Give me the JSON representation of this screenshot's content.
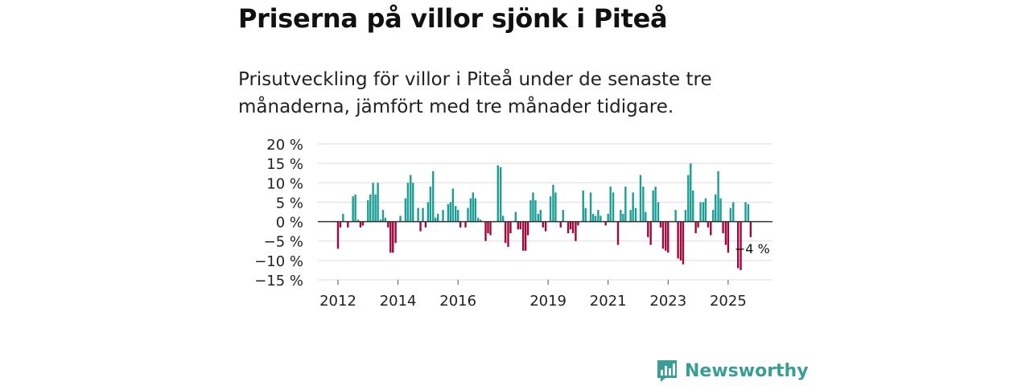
{
  "title": "Priserna på villor sjönk i Piteå",
  "subtitle": "Prisutveckling för villor i Piteå under de senaste tre månaderna, jämfört med tre månader tidigare.",
  "brand": {
    "name": "Newsworthy"
  },
  "colors": {
    "positive": "#1a9e96",
    "negative": "#a0083c",
    "grid": "#dddddd",
    "zero": "#333333",
    "brand": "#3a9d96"
  },
  "chart_data": {
    "type": "bar",
    "title": "Priserna på villor sjönk i Piteå",
    "xlabel": "",
    "ylabel": "",
    "ylim": [
      -15,
      20
    ],
    "y_ticks": [
      20,
      15,
      10,
      5,
      0,
      -5,
      -10,
      -15
    ],
    "y_tick_labels": [
      "20 %",
      "15 %",
      "10 %",
      "5 %",
      "0 %",
      "−5 %",
      "−10 %",
      "−15 %"
    ],
    "x_range": [
      2011.5,
      2026.5
    ],
    "x_ticks": [
      2012,
      2014,
      2016,
      2019,
      2021,
      2023,
      2025
    ],
    "x_tick_labels": [
      "2012",
      "2014",
      "2016",
      "2019",
      "2021",
      "2023",
      "2025"
    ],
    "annotation": {
      "text": "−4 %",
      "x": 2025.75,
      "y": -4
    },
    "x": [
      2012.0,
      2012.08,
      2012.17,
      2012.25,
      2012.33,
      2012.42,
      2012.5,
      2012.58,
      2012.67,
      2012.75,
      2012.83,
      2012.92,
      2013.0,
      2013.08,
      2013.17,
      2013.25,
      2013.33,
      2013.42,
      2013.5,
      2013.58,
      2013.67,
      2013.75,
      2013.83,
      2013.92,
      2014.0,
      2014.08,
      2014.17,
      2014.25,
      2014.33,
      2014.42,
      2014.5,
      2014.58,
      2014.67,
      2014.75,
      2014.83,
      2014.92,
      2015.0,
      2015.08,
      2015.17,
      2015.25,
      2015.33,
      2015.42,
      2015.5,
      2015.58,
      2015.67,
      2015.75,
      2015.83,
      2015.92,
      2016.0,
      2016.08,
      2016.17,
      2016.25,
      2016.33,
      2016.42,
      2016.5,
      2016.58,
      2016.67,
      2016.75,
      2016.83,
      2016.92,
      2017.0,
      2017.08,
      2017.17,
      2017.25,
      2017.33,
      2017.42,
      2017.5,
      2017.58,
      2017.67,
      2017.75,
      2017.83,
      2017.92,
      2018.0,
      2018.08,
      2018.17,
      2018.25,
      2018.33,
      2018.42,
      2018.5,
      2018.58,
      2018.67,
      2018.75,
      2018.83,
      2018.92,
      2019.0,
      2019.08,
      2019.17,
      2019.25,
      2019.33,
      2019.42,
      2019.5,
      2019.58,
      2019.67,
      2019.75,
      2019.83,
      2019.92,
      2020.0,
      2020.08,
      2020.17,
      2020.25,
      2020.33,
      2020.42,
      2020.5,
      2020.58,
      2020.67,
      2020.75,
      2020.83,
      2020.92,
      2021.0,
      2021.08,
      2021.17,
      2021.25,
      2021.33,
      2021.42,
      2021.5,
      2021.58,
      2021.67,
      2021.75,
      2021.83,
      2021.92,
      2022.0,
      2022.08,
      2022.17,
      2022.25,
      2022.33,
      2022.42,
      2022.5,
      2022.58,
      2022.67,
      2022.75,
      2022.83,
      2022.92,
      2023.0,
      2023.08,
      2023.17,
      2023.25,
      2023.33,
      2023.42,
      2023.5,
      2023.58,
      2023.67,
      2023.75,
      2023.83,
      2023.92,
      2024.0,
      2024.08,
      2024.17,
      2024.25,
      2024.33,
      2024.42,
      2024.5,
      2024.58,
      2024.67,
      2024.75,
      2024.83,
      2024.92,
      2025.0,
      2025.08,
      2025.17,
      2025.25,
      2025.33,
      2025.42,
      2025.5,
      2025.58,
      2025.67,
      2025.75
    ],
    "values": [
      -7,
      -1.5,
      2,
      0,
      -1.5,
      0,
      6.5,
      7,
      0.5,
      -1.5,
      -1,
      0,
      5.5,
      7,
      10,
      7,
      10,
      0.5,
      3,
      1,
      -1.5,
      -8,
      -8,
      -5.5,
      0,
      1.5,
      0,
      6,
      10,
      12,
      10,
      0,
      3.5,
      -2.5,
      3.5,
      -1.5,
      5,
      9,
      13,
      1,
      2,
      0,
      3,
      0,
      4.5,
      5,
      8.5,
      4,
      3,
      -1.5,
      0,
      -1.5,
      3.5,
      6,
      7.5,
      6,
      1,
      0.5,
      0,
      -5,
      -3,
      -3.5,
      0,
      0,
      14.5,
      14,
      1.5,
      -5.5,
      -6.5,
      -3,
      0,
      2.5,
      -2,
      -2,
      -7.5,
      -7.5,
      -3.5,
      5.5,
      7.5,
      5.5,
      2,
      3,
      -1.5,
      -2.5,
      0,
      6.5,
      9.5,
      7.5,
      0,
      -1.5,
      3,
      0,
      -3,
      -2,
      -3,
      -5,
      -1,
      0,
      8,
      3.5,
      0,
      7.5,
      2,
      1.5,
      3,
      1.5,
      0,
      -1,
      2,
      9,
      7.5,
      0,
      -6,
      3,
      2,
      9,
      0,
      3,
      7.5,
      3.5,
      0,
      12,
      9,
      2.5,
      -4,
      -6,
      8,
      9,
      5,
      -1.5,
      -7,
      -7.5,
      -8,
      0,
      0,
      3,
      -9.5,
      -10,
      -11,
      3,
      12,
      15,
      8,
      -3,
      -1.5,
      5,
      5,
      6,
      -1.5,
      -3.5,
      3,
      7,
      13,
      6,
      -3,
      -6,
      -8,
      3.5,
      5,
      0,
      -12,
      -12.5,
      0,
      5,
      4.5,
      -4
    ]
  }
}
